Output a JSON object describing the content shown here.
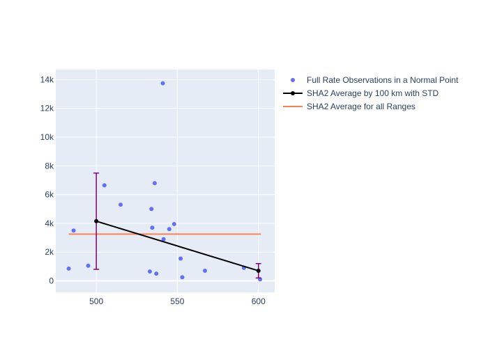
{
  "chart_data": {
    "type": "scatter",
    "title": "",
    "xlabel": "",
    "ylabel": "",
    "xlim": [
      475,
      610
    ],
    "ylim": [
      -800,
      14700
    ],
    "x_ticks": [
      500,
      550,
      600
    ],
    "x_tick_labels": [
      "500",
      "550",
      "600"
    ],
    "y_ticks": [
      0,
      2000,
      4000,
      6000,
      8000,
      10000,
      12000,
      14000
    ],
    "y_tick_labels": [
      "0",
      "2k",
      "4k",
      "6k",
      "8k",
      "10k",
      "12k",
      "14k"
    ],
    "grid": true,
    "legend_position": "right",
    "series": [
      {
        "name": "Full Rate Observations in a Normal Point",
        "type": "scatter",
        "color": "#636efa",
        "x": [
          483,
          486,
          495,
          505,
          515,
          533,
          534,
          534.5,
          536,
          537,
          541,
          541.5,
          545,
          548,
          552,
          553,
          567,
          591,
          601
        ],
        "y": [
          850,
          3500,
          1050,
          6650,
          5300,
          650,
          5000,
          3700,
          6800,
          500,
          13750,
          2900,
          3600,
          3950,
          1550,
          250,
          700,
          900,
          100
        ]
      },
      {
        "name": "SHA2 Average by 100 km with STD",
        "type": "line",
        "color": "#000000",
        "error_bar_color": "#800080",
        "x": [
          500,
          600
        ],
        "y": [
          4150,
          700
        ],
        "std": [
          3350,
          500
        ]
      },
      {
        "name": "SHA2 Average for all Ranges",
        "type": "line",
        "color": "#ff7f50",
        "x": [
          483,
          601.5
        ],
        "y": [
          3250,
          3250
        ]
      }
    ]
  }
}
